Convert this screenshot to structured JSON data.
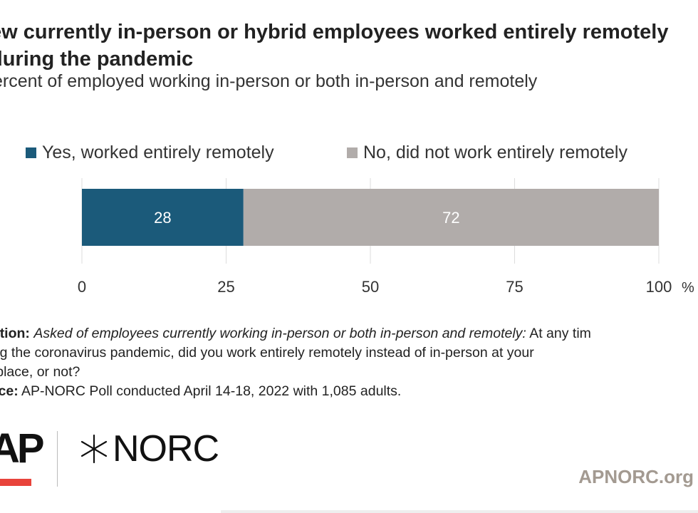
{
  "title": "ew currently in-person or hybrid employees worked entirely remotely during the pandemic",
  "subtitle": "ercent of employed working in-person or both in-person and remotely",
  "notes": {
    "question_label": "estion:",
    "question_italic": "Asked of employees currently working in-person or both in-person and remotely:",
    "question_text": " At any time during the coronavirus pandemic, did you work entirely remotely instead of in-person at your workplace, or not?",
    "question_text_display": " At any tim",
    "question_line2": "ring the coronavirus pandemic, did you work entirely remotely instead of in-person at your",
    "question_line3": "rkplace, or not?",
    "source_label": "urce:",
    "source_text": " AP-NORC Poll conducted April 14-18, 2022 with 1,085 adults."
  },
  "logos": {
    "ap": "AP",
    "norc": "NORC"
  },
  "footer_url": "APNORC.org",
  "chart_data": {
    "type": "bar",
    "orientation": "horizontal-stacked",
    "categories": [
      ""
    ],
    "series": [
      {
        "name": "Yes, worked entirely remotely",
        "values": [
          28
        ],
        "color": "#1b5a7a",
        "label_color": "#ffffff"
      },
      {
        "name": "No, did not work entirely remotely",
        "values": [
          72
        ],
        "color": "#b1acaa",
        "label_color": "#ffffff"
      }
    ],
    "xlim": [
      0,
      100
    ],
    "xticks": [
      0,
      25,
      50,
      75,
      100
    ],
    "xtick_labels": [
      "0",
      "25",
      "50",
      "75",
      "100"
    ],
    "x_unit": "%",
    "legend_position": "top",
    "grid": true
  }
}
